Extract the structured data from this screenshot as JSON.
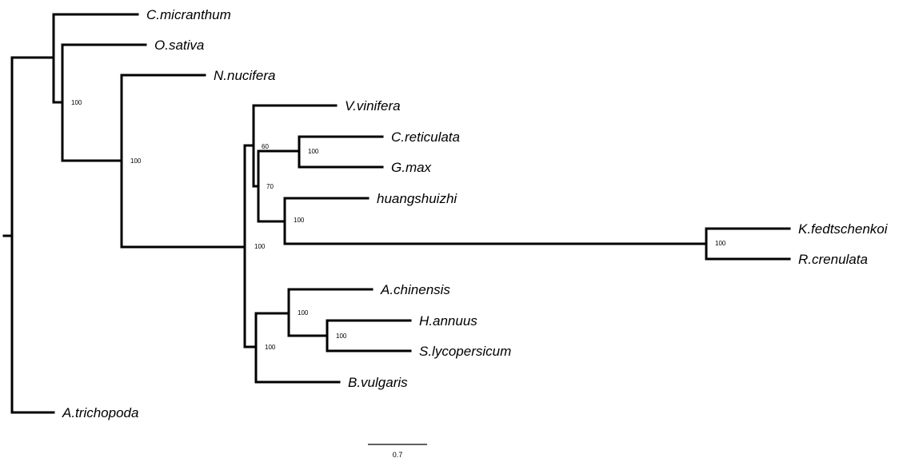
{
  "scale_bar": {
    "label": "0.7"
  },
  "taxa": [
    "C.micranthum",
    "O.sativa",
    "N.nucifera",
    "V.vinifera",
    "C.reticulata",
    "G.max",
    "huangshuizhi",
    "K.fedtschenkoi",
    "R.crenulata",
    "A.chinensis",
    "H.annuus",
    "S.lycopersicum",
    "B.vulgaris",
    "A.trichopoda"
  ],
  "support_values": [
    "100",
    "100",
    "60",
    "100",
    "70",
    "100",
    "100",
    "100",
    "100",
    "100",
    "100"
  ]
}
